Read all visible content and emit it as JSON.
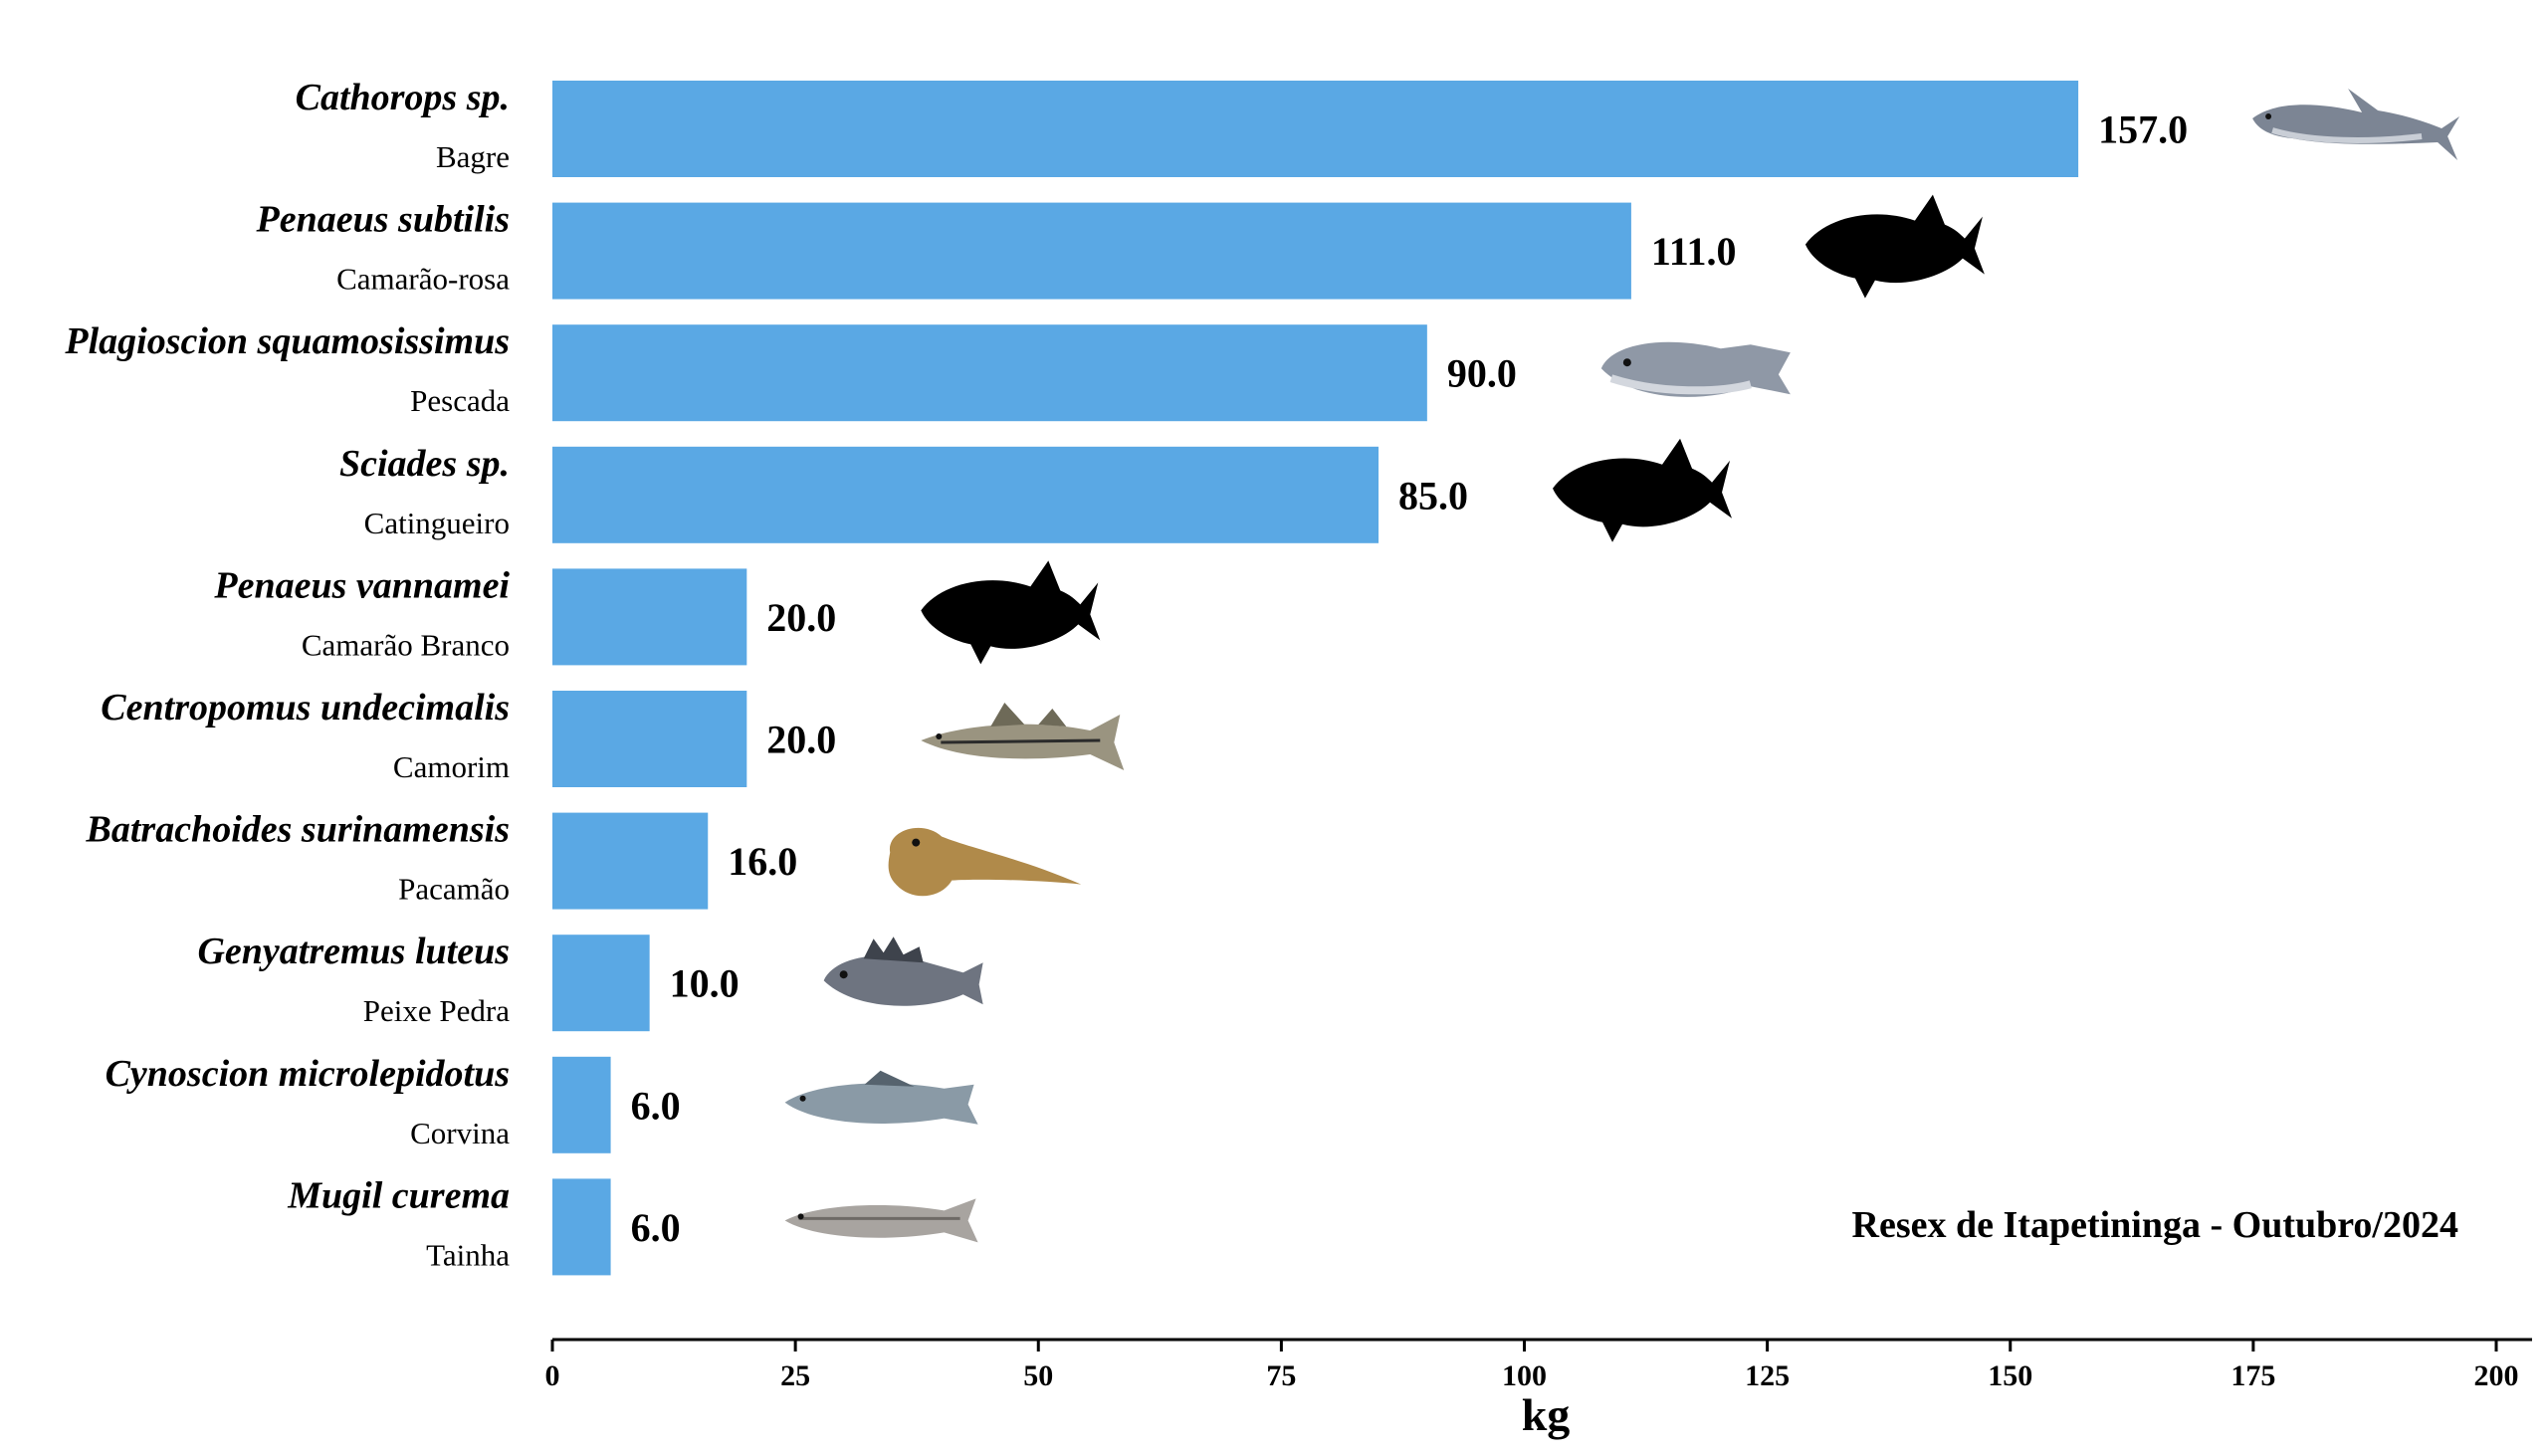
{
  "chart_data": {
    "type": "bar",
    "orientation": "horizontal",
    "categories": [
      {
        "scientific": "Cathorops sp.",
        "common": "Bagre",
        "value": 157.0,
        "value_label": "157.0",
        "icon": "catfish-icon"
      },
      {
        "scientific": "Penaeus subtilis",
        "common": "Camarão-rosa",
        "value": 111.0,
        "value_label": "111.0",
        "icon": "fish-silhouette-icon"
      },
      {
        "scientific": "Plagioscion squamosissimus",
        "common": "Pescada",
        "value": 90.0,
        "value_label": "90.0",
        "icon": "croaker-icon"
      },
      {
        "scientific": "Sciades sp.",
        "common": "Catingueiro",
        "value": 85.0,
        "value_label": "85.0",
        "icon": "fish-silhouette-icon"
      },
      {
        "scientific": "Penaeus vannamei",
        "common": "Camarão Branco",
        "value": 20.0,
        "value_label": "20.0",
        "icon": "fish-silhouette-icon"
      },
      {
        "scientific": "Centropomus undecimalis",
        "common": "Camorim",
        "value": 20.0,
        "value_label": "20.0",
        "icon": "snook-icon"
      },
      {
        "scientific": "Batrachoides surinamensis",
        "common": "Pacamão",
        "value": 16.0,
        "value_label": "16.0",
        "icon": "toadfish-icon"
      },
      {
        "scientific": "Genyatremus luteus",
        "common": "Peixe Pedra",
        "value": 10.0,
        "value_label": "10.0",
        "icon": "grunt-icon"
      },
      {
        "scientific": "Cynoscion microlepidotus",
        "common": "Corvina",
        "value": 6.0,
        "value_label": "6.0",
        "icon": "weakfish-icon"
      },
      {
        "scientific": "Mugil curema",
        "common": "Tainha",
        "value": 6.0,
        "value_label": "6.0",
        "icon": "mullet-icon"
      }
    ],
    "xlabel": "kg",
    "xlim": [
      0,
      200
    ],
    "xticks": [
      "0",
      "25",
      "50",
      "75",
      "100",
      "125",
      "150",
      "175",
      "200"
    ],
    "annotation": "Resex de Itapetininga - Outubro/2024",
    "bar_color": "#5aa8e4",
    "grid": false,
    "legend": "none"
  }
}
